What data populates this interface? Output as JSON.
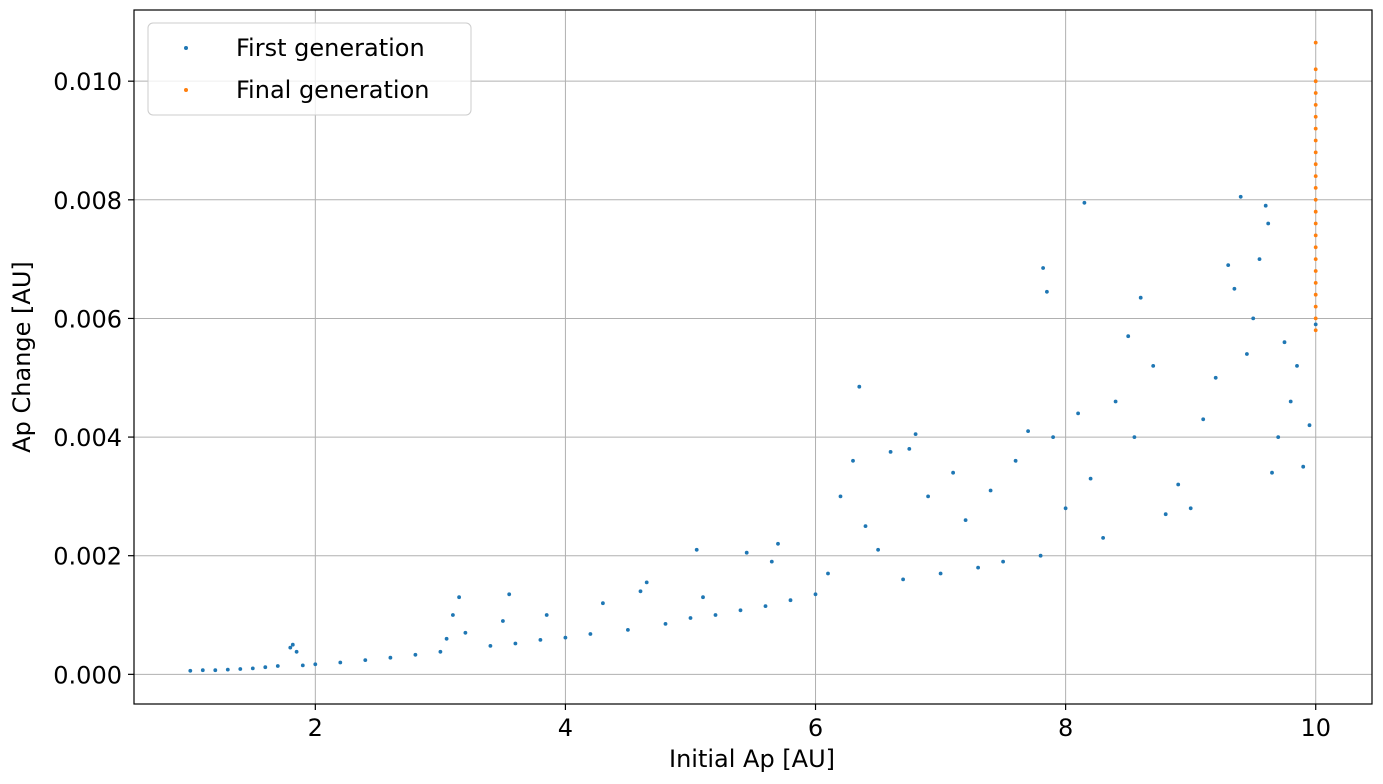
{
  "chart_data": {
    "type": "scatter",
    "title": "",
    "xlabel": "Initial Ap [AU]",
    "ylabel": "Ap Change [AU]",
    "xlim": [
      0.55,
      10.45
    ],
    "ylim": [
      -0.0005,
      0.0112
    ],
    "x_ticks": [
      2,
      4,
      6,
      8,
      10
    ],
    "x_tick_labels": [
      "2",
      "4",
      "6",
      "8",
      "10"
    ],
    "y_ticks": [
      0,
      0.002,
      0.004,
      0.006,
      0.008,
      0.01
    ],
    "y_tick_labels": [
      "0.000",
      "0.002",
      "0.004",
      "0.006",
      "0.008",
      "0.010"
    ],
    "grid": true,
    "legend_position": "top-left",
    "series": [
      {
        "name": "First generation",
        "color": "#1f77b4",
        "points": [
          [
            1.0,
            6e-05
          ],
          [
            1.1,
            7e-05
          ],
          [
            1.2,
            7e-05
          ],
          [
            1.3,
            8e-05
          ],
          [
            1.4,
            9e-05
          ],
          [
            1.5,
            0.0001
          ],
          [
            1.6,
            0.00012
          ],
          [
            1.7,
            0.00014
          ],
          [
            1.8,
            0.00045
          ],
          [
            1.82,
            0.0005
          ],
          [
            1.85,
            0.00038
          ],
          [
            1.9,
            0.00015
          ],
          [
            2.0,
            0.00017
          ],
          [
            2.2,
            0.0002
          ],
          [
            2.4,
            0.00024
          ],
          [
            2.6,
            0.00028
          ],
          [
            2.8,
            0.00033
          ],
          [
            3.0,
            0.00038
          ],
          [
            3.05,
            0.0006
          ],
          [
            3.1,
            0.001
          ],
          [
            3.15,
            0.0013
          ],
          [
            3.2,
            0.0007
          ],
          [
            3.4,
            0.00048
          ],
          [
            3.5,
            0.0009
          ],
          [
            3.55,
            0.00135
          ],
          [
            3.6,
            0.00052
          ],
          [
            3.8,
            0.00058
          ],
          [
            3.85,
            0.001
          ],
          [
            4.0,
            0.00062
          ],
          [
            4.2,
            0.00068
          ],
          [
            4.3,
            0.0012
          ],
          [
            4.5,
            0.00075
          ],
          [
            4.6,
            0.0014
          ],
          [
            4.65,
            0.00155
          ],
          [
            4.8,
            0.00085
          ],
          [
            5.0,
            0.00095
          ],
          [
            5.05,
            0.0021
          ],
          [
            5.1,
            0.0013
          ],
          [
            5.2,
            0.001
          ],
          [
            5.4,
            0.00108
          ],
          [
            5.45,
            0.00205
          ],
          [
            5.6,
            0.00115
          ],
          [
            5.65,
            0.0019
          ],
          [
            5.7,
            0.0022
          ],
          [
            5.8,
            0.00125
          ],
          [
            6.0,
            0.00135
          ],
          [
            6.1,
            0.0017
          ],
          [
            6.2,
            0.003
          ],
          [
            6.3,
            0.0036
          ],
          [
            6.35,
            0.00485
          ],
          [
            6.4,
            0.0025
          ],
          [
            6.5,
            0.0021
          ],
          [
            6.6,
            0.00375
          ],
          [
            6.7,
            0.0016
          ],
          [
            6.75,
            0.0038
          ],
          [
            6.8,
            0.00405
          ],
          [
            6.9,
            0.003
          ],
          [
            7.0,
            0.0017
          ],
          [
            7.1,
            0.0034
          ],
          [
            7.2,
            0.0026
          ],
          [
            7.3,
            0.0018
          ],
          [
            7.4,
            0.0031
          ],
          [
            7.5,
            0.0019
          ],
          [
            7.6,
            0.0036
          ],
          [
            7.7,
            0.0041
          ],
          [
            7.8,
            0.002
          ],
          [
            7.82,
            0.00685
          ],
          [
            7.85,
            0.00645
          ],
          [
            7.9,
            0.004
          ],
          [
            8.0,
            0.0028
          ],
          [
            8.1,
            0.0044
          ],
          [
            8.15,
            0.00795
          ],
          [
            8.2,
            0.0033
          ],
          [
            8.3,
            0.0023
          ],
          [
            8.4,
            0.0046
          ],
          [
            8.5,
            0.0057
          ],
          [
            8.55,
            0.004
          ],
          [
            8.6,
            0.00635
          ],
          [
            8.7,
            0.0052
          ],
          [
            8.8,
            0.0027
          ],
          [
            8.9,
            0.0032
          ],
          [
            9.0,
            0.0028
          ],
          [
            9.1,
            0.0043
          ],
          [
            9.2,
            0.005
          ],
          [
            9.3,
            0.0069
          ],
          [
            9.35,
            0.0065
          ],
          [
            9.4,
            0.00805
          ],
          [
            9.45,
            0.0054
          ],
          [
            9.5,
            0.006
          ],
          [
            9.55,
            0.007
          ],
          [
            9.6,
            0.0079
          ],
          [
            9.62,
            0.0076
          ],
          [
            9.65,
            0.0034
          ],
          [
            9.7,
            0.004
          ],
          [
            9.75,
            0.0056
          ],
          [
            9.8,
            0.0046
          ],
          [
            9.85,
            0.0052
          ],
          [
            9.9,
            0.0035
          ],
          [
            9.95,
            0.0042
          ],
          [
            10.0,
            0.0059
          ]
        ]
      },
      {
        "name": "Final generation",
        "color": "#ff7f0e",
        "points": [
          [
            10.0,
            0.0058
          ],
          [
            10.0,
            0.006
          ],
          [
            10.0,
            0.0062
          ],
          [
            10.0,
            0.0064
          ],
          [
            10.0,
            0.0066
          ],
          [
            10.0,
            0.0068
          ],
          [
            10.0,
            0.007
          ],
          [
            10.0,
            0.0072
          ],
          [
            10.0,
            0.0074
          ],
          [
            10.0,
            0.0076
          ],
          [
            10.0,
            0.0078
          ],
          [
            10.0,
            0.008
          ],
          [
            10.0,
            0.0082
          ],
          [
            10.0,
            0.0084
          ],
          [
            10.0,
            0.0086
          ],
          [
            10.0,
            0.0088
          ],
          [
            10.0,
            0.009
          ],
          [
            10.0,
            0.0092
          ],
          [
            10.0,
            0.0094
          ],
          [
            10.0,
            0.0096
          ],
          [
            10.0,
            0.0098
          ],
          [
            10.0,
            0.01
          ],
          [
            10.0,
            0.0102
          ],
          [
            10.0,
            0.01065
          ]
        ]
      }
    ]
  }
}
